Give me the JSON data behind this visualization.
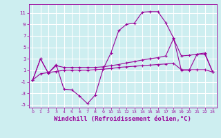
{
  "background_color": "#cdeef0",
  "grid_color": "#ffffff",
  "line_color": "#990099",
  "xlabel": "Windchill (Refroidissement éolien,°C)",
  "xlabel_fontsize": 6.5,
  "tick_label_color": "#990099",
  "xlim": [
    -0.5,
    23.5
  ],
  "ylim": [
    -5.5,
    12.5
  ],
  "yticks": [
    -5,
    -3,
    -1,
    1,
    3,
    5,
    7,
    9,
    11
  ],
  "xticks": [
    0,
    1,
    2,
    3,
    4,
    5,
    6,
    7,
    8,
    9,
    10,
    11,
    12,
    13,
    14,
    15,
    16,
    17,
    18,
    19,
    20,
    21,
    22,
    23
  ],
  "series1_x": [
    0,
    1,
    2,
    3,
    4,
    5,
    6,
    7,
    8,
    9,
    10,
    11,
    12,
    13,
    14,
    15,
    16,
    17,
    18,
    19,
    20,
    21,
    22,
    23
  ],
  "series1_y": [
    -0.7,
    3.0,
    0.5,
    2.0,
    -2.3,
    -2.4,
    -3.5,
    -4.8,
    -3.3,
    1.2,
    4.0,
    7.9,
    9.0,
    9.2,
    11.1,
    11.2,
    11.2,
    9.3,
    6.6,
    1.0,
    1.0,
    3.8,
    3.8,
    0.7
  ],
  "series2_x": [
    0,
    1,
    2,
    3,
    4,
    5,
    6,
    7,
    8,
    9,
    10,
    11,
    12,
    13,
    14,
    15,
    16,
    17,
    18,
    19,
    20,
    21,
    22,
    23
  ],
  "series2_y": [
    -0.7,
    3.0,
    0.5,
    1.8,
    1.5,
    1.5,
    1.5,
    1.5,
    1.5,
    1.6,
    1.8,
    2.0,
    2.3,
    2.5,
    2.8,
    3.0,
    3.2,
    3.5,
    6.5,
    3.5,
    3.6,
    3.8,
    4.0,
    0.7
  ],
  "series3_x": [
    0,
    1,
    2,
    3,
    4,
    5,
    6,
    7,
    8,
    9,
    10,
    11,
    12,
    13,
    14,
    15,
    16,
    17,
    18,
    19,
    20,
    21,
    22,
    23
  ],
  "series3_y": [
    -0.7,
    0.4,
    0.6,
    0.8,
    1.0,
    1.0,
    1.0,
    1.0,
    1.1,
    1.2,
    1.3,
    1.5,
    1.6,
    1.7,
    1.8,
    1.9,
    2.0,
    2.1,
    2.2,
    1.1,
    1.1,
    1.1,
    1.1,
    0.7
  ]
}
